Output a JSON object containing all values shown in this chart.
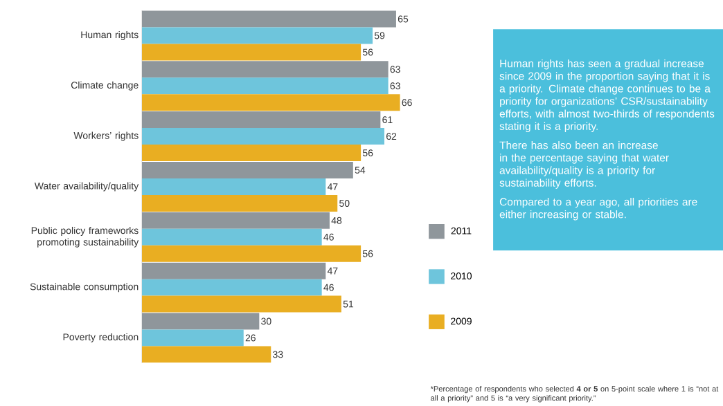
{
  "chart_data": {
    "type": "bar",
    "orientation": "horizontal",
    "categories": [
      "Human rights",
      "Climate change",
      "Workers’ rights",
      "Water availability/quality",
      "Public policy frameworks promoting sustainability",
      "Sustainable consumption",
      "Poverty reduction"
    ],
    "series": [
      {
        "name": "2011",
        "color": "#8f969b",
        "values": [
          65,
          63,
          61,
          54,
          48,
          47,
          30
        ]
      },
      {
        "name": "2010",
        "color": "#6ec5dc",
        "values": [
          59,
          63,
          62,
          47,
          46,
          46,
          26
        ]
      },
      {
        "name": "2009",
        "color": "#e9ae22",
        "values": [
          56,
          66,
          56,
          50,
          56,
          51,
          33
        ]
      }
    ],
    "data_labels": true,
    "tick_labels": "y",
    "legend": "right",
    "annotations": [
      "Human rights has seen a gradual increase since 2009 in the proportion saying that it is a priority. Climate change continues to be a priority for organizations’ CSR/sustainability efforts, with almost two-thirds of respondents stating it is a priority.",
      "There has also been an increase in the percentage saying that water availability/quality is a priority for sustainability efforts.",
      "Compared to a year ago, all priorities are either increasing or stable.",
      "*Percentage of respondents who selected **4 or 5** on 5-point scale where 1 is “not at all a priority” and 5 is “a very significant priority.”"
    ]
  }
}
